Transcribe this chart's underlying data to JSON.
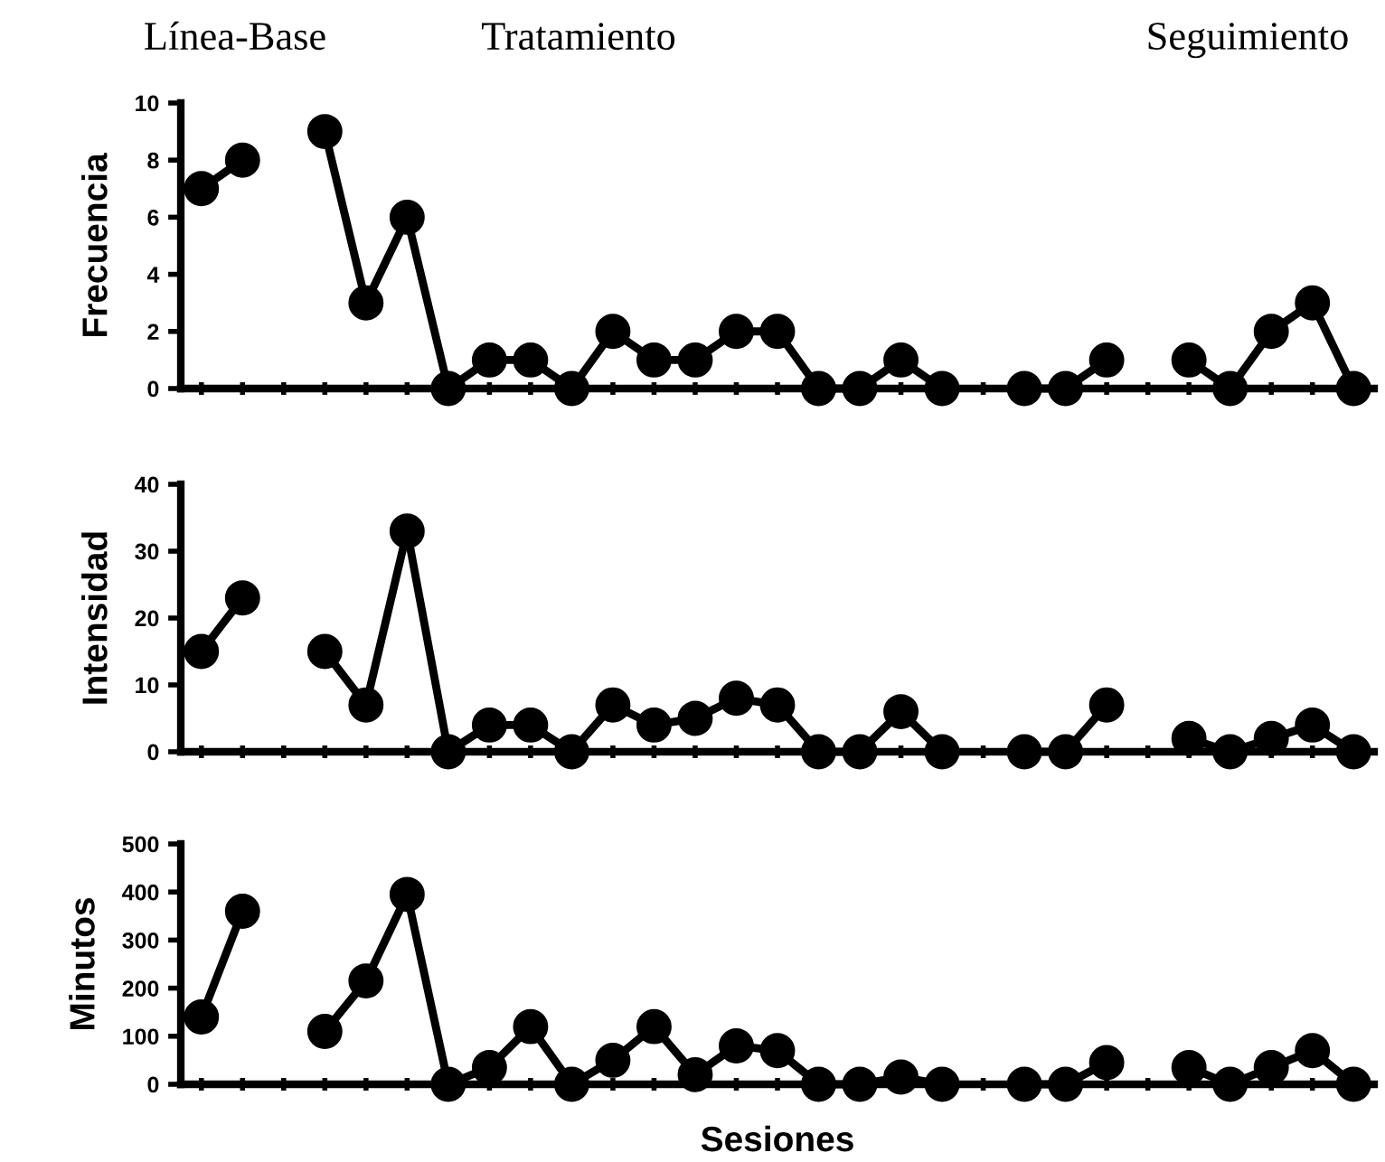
{
  "chart_data": [
    {
      "type": "line",
      "annotations": [
        "Línea-Base",
        "Tratamiento",
        "Seguimiento"
      ],
      "ylabel": "Frecuencia",
      "categories": [
        null,
        null,
        null,
        null,
        null,
        null,
        null,
        null,
        null,
        null,
        null,
        null,
        null,
        null,
        null,
        null,
        null,
        null,
        null,
        null,
        null,
        null,
        null,
        null,
        null,
        null,
        null,
        null,
        null
      ],
      "series": [
        {
          "color": "#000000",
          "values": [
            7,
            8,
            null,
            null,
            null,
            null,
            null,
            null,
            null,
            null,
            null,
            null,
            null,
            null,
            null,
            null,
            null,
            null,
            null,
            null,
            null,
            null,
            null,
            null,
            null,
            null,
            null,
            null,
            null
          ]
        },
        {
          "color": "#000000",
          "values": [
            null,
            null,
            null,
            9,
            3,
            6,
            0,
            1,
            1,
            0,
            2,
            1,
            1,
            2,
            2,
            0,
            0,
            1,
            0,
            null,
            null,
            null,
            null,
            null,
            null,
            null,
            null,
            null,
            null
          ]
        },
        {
          "color": "#000000",
          "values": [
            null,
            null,
            null,
            null,
            null,
            null,
            null,
            null,
            null,
            null,
            null,
            null,
            null,
            null,
            null,
            null,
            null,
            null,
            null,
            null,
            0,
            0,
            1,
            null,
            null,
            null,
            null,
            null,
            null
          ]
        },
        {
          "color": "#000000",
          "values": [
            null,
            null,
            null,
            null,
            null,
            null,
            null,
            null,
            null,
            null,
            null,
            null,
            null,
            null,
            null,
            null,
            null,
            null,
            null,
            null,
            null,
            null,
            null,
            null,
            1,
            0,
            2,
            3,
            0
          ]
        }
      ],
      "ylim": [
        0,
        10
      ],
      "yticks": [
        0,
        2,
        4,
        6,
        8,
        10
      ],
      "marker": "circle",
      "tick_labels": "y"
    },
    {
      "type": "line",
      "ylabel": "Intensidad",
      "categories": [
        null,
        null,
        null,
        null,
        null,
        null,
        null,
        null,
        null,
        null,
        null,
        null,
        null,
        null,
        null,
        null,
        null,
        null,
        null,
        null,
        null,
        null,
        null,
        null,
        null,
        null,
        null,
        null,
        null
      ],
      "series": [
        {
          "color": "#000000",
          "values": [
            15,
            23,
            null,
            null,
            null,
            null,
            null,
            null,
            null,
            null,
            null,
            null,
            null,
            null,
            null,
            null,
            null,
            null,
            null,
            null,
            null,
            null,
            null,
            null,
            null,
            null,
            null,
            null,
            null
          ]
        },
        {
          "color": "#000000",
          "values": [
            null,
            null,
            null,
            15,
            7,
            33,
            0,
            4,
            4,
            0,
            7,
            4,
            5,
            8,
            7,
            0,
            0,
            6,
            0,
            null,
            null,
            null,
            null,
            null,
            null,
            null,
            null,
            null,
            null
          ]
        },
        {
          "color": "#000000",
          "values": [
            null,
            null,
            null,
            null,
            null,
            null,
            null,
            null,
            null,
            null,
            null,
            null,
            null,
            null,
            null,
            null,
            null,
            null,
            null,
            null,
            0,
            0,
            7,
            null,
            null,
            null,
            null,
            null,
            null
          ]
        },
        {
          "color": "#000000",
          "values": [
            null,
            null,
            null,
            null,
            null,
            null,
            null,
            null,
            null,
            null,
            null,
            null,
            null,
            null,
            null,
            null,
            null,
            null,
            null,
            null,
            null,
            null,
            null,
            null,
            2,
            0,
            2,
            4,
            0
          ]
        }
      ],
      "ylim": [
        0,
        40
      ],
      "yticks": [
        0,
        10,
        20,
        30,
        40
      ],
      "marker": "circle",
      "tick_labels": "y"
    },
    {
      "type": "line",
      "ylabel": "Minutos",
      "xlabel": "Sesiones",
      "categories": [
        null,
        null,
        null,
        null,
        null,
        null,
        null,
        null,
        null,
        null,
        null,
        null,
        null,
        null,
        null,
        null,
        null,
        null,
        null,
        null,
        null,
        null,
        null,
        null,
        null,
        null,
        null,
        null,
        null
      ],
      "series": [
        {
          "color": "#000000",
          "values": [
            140,
            360,
            null,
            null,
            null,
            null,
            null,
            null,
            null,
            null,
            null,
            null,
            null,
            null,
            null,
            null,
            null,
            null,
            null,
            null,
            null,
            null,
            null,
            null,
            null,
            null,
            null,
            null,
            null
          ]
        },
        {
          "color": "#000000",
          "values": [
            null,
            null,
            null,
            110,
            215,
            395,
            0,
            35,
            120,
            0,
            50,
            120,
            20,
            80,
            70,
            0,
            0,
            15,
            0,
            null,
            null,
            null,
            null,
            null,
            null,
            null,
            null,
            null,
            null
          ]
        },
        {
          "color": "#000000",
          "values": [
            null,
            null,
            null,
            null,
            null,
            null,
            null,
            null,
            null,
            null,
            null,
            null,
            null,
            null,
            null,
            null,
            null,
            null,
            null,
            null,
            0,
            0,
            45,
            null,
            null,
            null,
            null,
            null,
            null
          ]
        },
        {
          "color": "#000000",
          "values": [
            null,
            null,
            null,
            null,
            null,
            null,
            null,
            null,
            null,
            null,
            null,
            null,
            null,
            null,
            null,
            null,
            null,
            null,
            null,
            null,
            null,
            null,
            null,
            null,
            35,
            0,
            35,
            70,
            0
          ]
        }
      ],
      "ylim": [
        0,
        500
      ],
      "yticks": [
        0,
        100,
        200,
        300,
        400,
        500
      ],
      "marker": "circle",
      "tick_labels": "y"
    }
  ]
}
